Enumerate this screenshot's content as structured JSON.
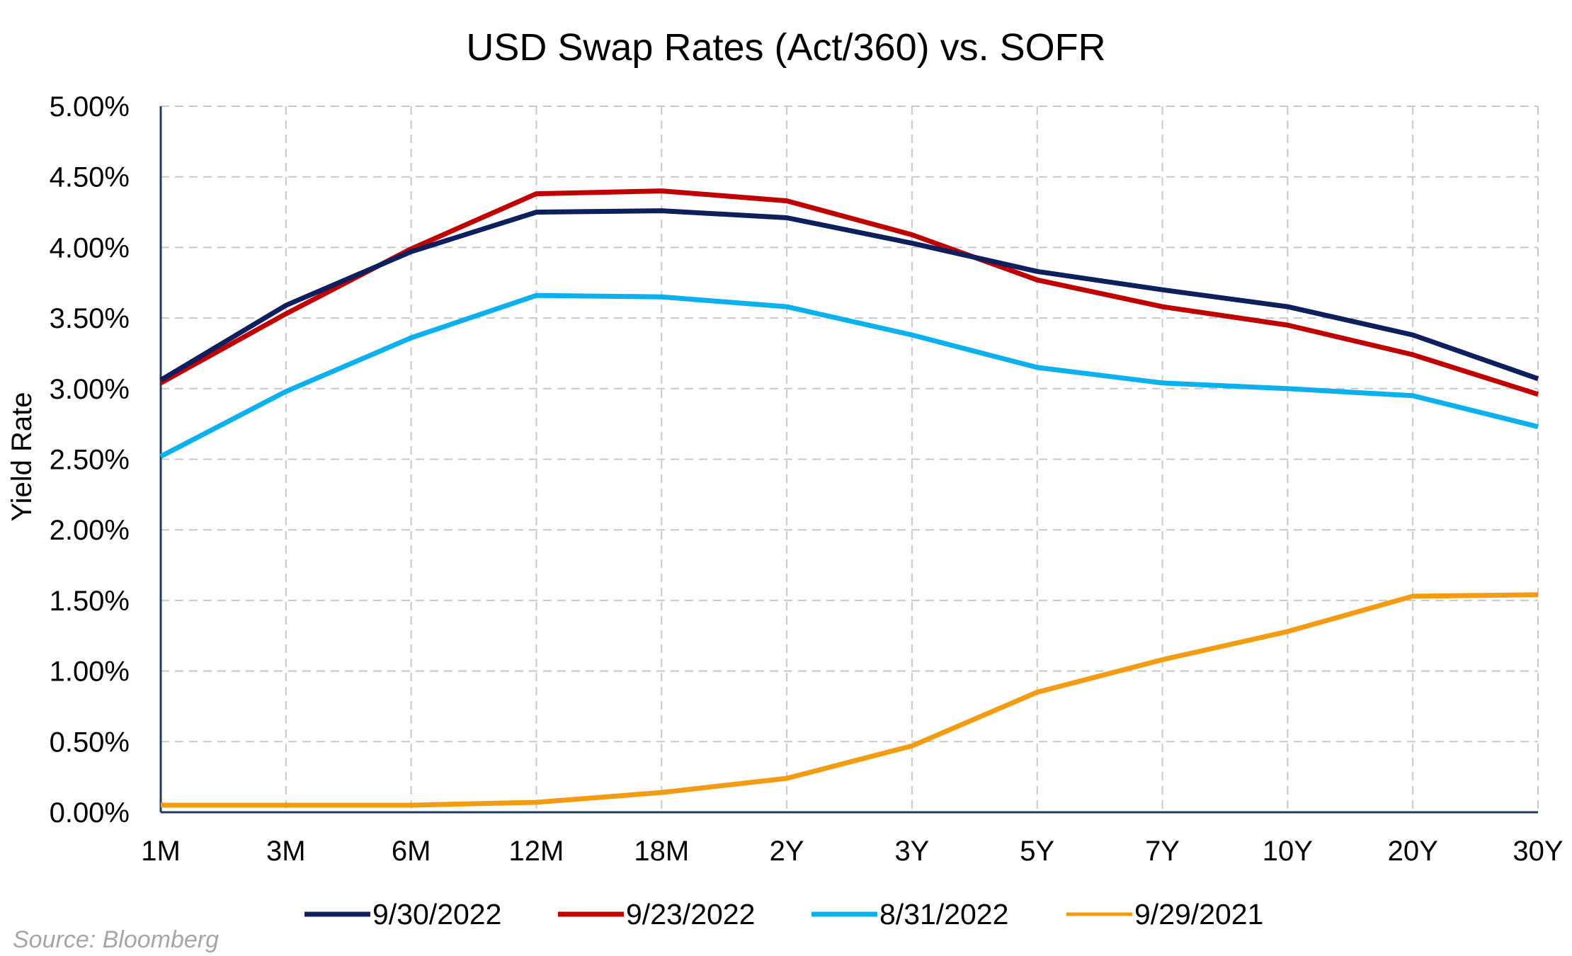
{
  "chart_data": {
    "type": "line",
    "title": "USD Swap Rates (Act/360) vs. SOFR",
    "xlabel": "",
    "ylabel": "Yield Rate",
    "categories": [
      "1M",
      "3M",
      "6M",
      "12M",
      "18M",
      "2Y",
      "3Y",
      "5Y",
      "7Y",
      "10Y",
      "20Y",
      "30Y"
    ],
    "ylim": [
      0,
      5
    ],
    "yticks": [
      0,
      0.5,
      1,
      1.5,
      2,
      2.5,
      3,
      3.5,
      4,
      4.5,
      5
    ],
    "ytick_labels": [
      "0.00%",
      "0.50%",
      "1.00%",
      "1.50%",
      "2.00%",
      "2.50%",
      "3.00%",
      "3.50%",
      "4.00%",
      "4.50%",
      "5.00%"
    ],
    "grid": true,
    "legend_position": "bottom",
    "series": [
      {
        "name": "9/30/2022",
        "color": "#0d1f5c",
        "values": [
          3.06,
          3.59,
          3.97,
          4.25,
          4.26,
          4.21,
          4.03,
          3.83,
          3.7,
          3.58,
          3.38,
          3.07
        ]
      },
      {
        "name": "9/23/2022",
        "color": "#c00000",
        "values": [
          3.04,
          3.53,
          3.99,
          4.38,
          4.4,
          4.33,
          4.09,
          3.77,
          3.58,
          3.45,
          3.24,
          2.96
        ]
      },
      {
        "name": "8/31/2022",
        "color": "#0bb0ee",
        "values": [
          2.52,
          2.98,
          3.36,
          3.66,
          3.65,
          3.58,
          3.38,
          3.15,
          3.04,
          3.0,
          2.95,
          2.73
        ]
      },
      {
        "name": "9/29/2021",
        "color": "#f39c12",
        "values": [
          0.05,
          0.05,
          0.05,
          0.07,
          0.14,
          0.24,
          0.47,
          0.85,
          1.08,
          1.28,
          1.53,
          1.54
        ]
      }
    ]
  },
  "source": "Source: Bloomberg"
}
